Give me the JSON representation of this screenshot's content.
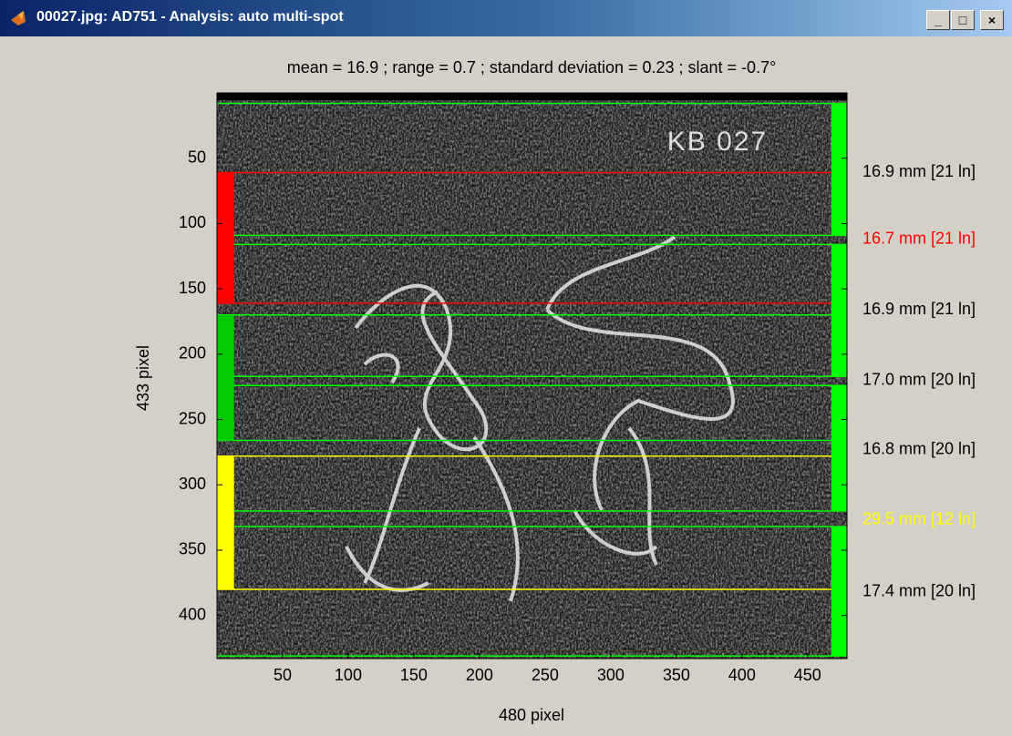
{
  "window": {
    "title": "00027.jpg: AD751 - Analysis: auto multi-spot"
  },
  "plot": {
    "title": "mean = 16.9 ; range = 0.7 ; standard deviation = 0.23 ; slant = -0.7°",
    "xlabel": "480 pixel",
    "ylabel": "433 pixel",
    "image_text": "KB 027",
    "xlim": [
      0,
      480
    ],
    "ylim": [
      0,
      433
    ],
    "xticks": [
      50,
      100,
      150,
      200,
      250,
      300,
      350,
      400,
      450
    ],
    "yticks": [
      50,
      100,
      150,
      200,
      250,
      300,
      350,
      400
    ],
    "lines": [
      {
        "y": 8,
        "color": "#00ff00"
      },
      {
        "y": 61,
        "color": "#ff0000"
      },
      {
        "y": 109,
        "color": "#00ff00"
      },
      {
        "y": 116,
        "color": "#00ff00"
      },
      {
        "y": 161,
        "color": "#ff0000"
      },
      {
        "y": 170,
        "color": "#00ff00"
      },
      {
        "y": 217,
        "color": "#00ff00"
      },
      {
        "y": 224,
        "color": "#00ff00"
      },
      {
        "y": 266,
        "color": "#00ff00"
      },
      {
        "y": 278,
        "color": "#ffff00"
      },
      {
        "y": 320,
        "color": "#00ff00"
      },
      {
        "y": 332,
        "color": "#00ff00"
      },
      {
        "y": 380,
        "color": "#ffff00"
      },
      {
        "y": 431,
        "color": "#00ff00"
      }
    ],
    "left_x": [
      0,
      13
    ],
    "left_bars": [
      {
        "from": 61,
        "to": 161,
        "color": "#ff0000"
      },
      {
        "from": 170,
        "to": 266,
        "color": "#00cc00"
      },
      {
        "from": 278,
        "to": 380,
        "color": "#ffff00"
      }
    ],
    "right_x": [
      468,
      480
    ],
    "right_bars": [
      {
        "from": 8,
        "to": 109,
        "color": "#00ff00"
      },
      {
        "from": 116,
        "to": 217,
        "color": "#00ff00"
      },
      {
        "from": 224,
        "to": 320,
        "color": "#00ff00"
      },
      {
        "from": 332,
        "to": 431,
        "color": "#00ff00"
      }
    ],
    "measurements": [
      {
        "text": "16.9 mm [21 ln]",
        "y": 61,
        "color": "#000000"
      },
      {
        "text": "16.7 mm [21 ln]",
        "y": 112,
        "color": "#ff0000"
      },
      {
        "text": "16.9 mm [21 ln]",
        "y": 166,
        "color": "#000000"
      },
      {
        "text": "17.0 mm [20 ln]",
        "y": 220,
        "color": "#000000"
      },
      {
        "text": "16.8 mm [20 ln]",
        "y": 273,
        "color": "#000000"
      },
      {
        "text": "29.5 mm [12 ln]",
        "y": 327,
        "color": "#ffff00"
      },
      {
        "text": "17.4 mm [20 ln]",
        "y": 382,
        "color": "#000000"
      }
    ]
  }
}
